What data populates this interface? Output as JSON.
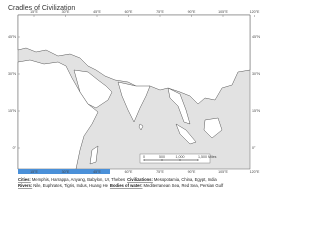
{
  "title": "Cradles of Civilization",
  "map": {
    "longitude_labels": [
      "15°E",
      "30°E",
      "45°E",
      "60°E",
      "75°E",
      "90°E",
      "105°E",
      "120°E"
    ],
    "latitude_labels": [
      "45°N",
      "30°N",
      "15°N",
      "0°"
    ]
  },
  "scale_bar": {
    "ticks": [
      "0",
      "500",
      "1,000",
      "1,500 Miles"
    ]
  },
  "legend": {
    "lines": [
      [
        {
          "label": "Cities:",
          "text": "Memphis, Harrappa, Anyang, Babylon, Ur, Thebes"
        },
        {
          "label": "Civilizations:",
          "text": "Mesopotamia, China, Egypt, India"
        }
      ],
      [
        {
          "label": "Rivers:",
          "text": "Nile, Euphrates, Tigris, Indus, Huang He"
        },
        {
          "label": "Bodies of water:",
          "text": "Mediterranean Sea, Red Sea, Persian Gulf"
        }
      ]
    ]
  }
}
